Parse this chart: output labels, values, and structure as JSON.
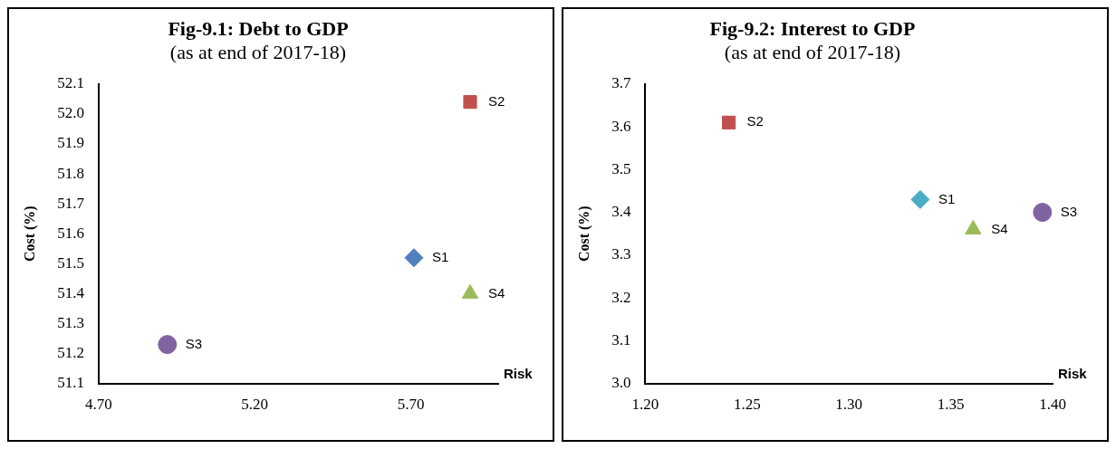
{
  "chart_data": [
    {
      "type": "scatter",
      "title": "Fig-9.1: Debt to GDP",
      "subtitle": "(as at end of 2017-18)",
      "xlabel": "Risk",
      "ylabel": "Cost (%)",
      "legend": false,
      "grid": false,
      "xlim": [
        4.7,
        5.98
      ],
      "xticks": [
        {
          "value": 4.7,
          "label": "4.70"
        },
        {
          "value": 5.2,
          "label": "5.20"
        },
        {
          "value": 5.7,
          "label": "5.70"
        }
      ],
      "ylim": [
        51.1,
        52.1
      ],
      "yticks": [
        51.1,
        51.2,
        51.3,
        51.4,
        51.5,
        51.6,
        51.7,
        51.8,
        51.9,
        {
          "value": 52.0,
          "label": "52.0"
        },
        52.1
      ],
      "series": [
        {
          "name": "S1",
          "color": "#4f81bd",
          "marker": "diamond",
          "x": [
            5.71
          ],
          "values": [
            51.52
          ]
        },
        {
          "name": "S2",
          "color": "#c0504d",
          "marker": "square",
          "x": [
            5.89
          ],
          "values": [
            52.04
          ]
        },
        {
          "name": "S3",
          "color": "#8064a2",
          "marker": "circle",
          "x": [
            4.92
          ],
          "values": [
            51.23
          ]
        },
        {
          "name": "S4",
          "color": "#9bbb59",
          "marker": "triangle",
          "x": [
            5.89
          ],
          "values": [
            51.4
          ]
        }
      ]
    },
    {
      "type": "scatter",
      "title": "Fig-9.2: Interest to GDP",
      "subtitle": "(as at end of 2017-18)",
      "xlabel": "Risk",
      "ylabel": "Cost (%)",
      "legend": false,
      "grid": false,
      "xlim": [
        1.2,
        1.4
      ],
      "xticks": [
        {
          "value": 1.2,
          "label": "1.20"
        },
        {
          "value": 1.25,
          "label": "1.25"
        },
        {
          "value": 1.3,
          "label": "1.30"
        },
        {
          "value": 1.35,
          "label": "1.35"
        },
        {
          "value": 1.4,
          "label": "1.40"
        }
      ],
      "ylim": [
        3.0,
        3.7
      ],
      "yticks": [
        {
          "value": 3.0,
          "label": "3.0"
        },
        3.1,
        3.2,
        3.3,
        3.4,
        3.5,
        3.6,
        3.7
      ],
      "series": [
        {
          "name": "S1",
          "color": "#4bacc6",
          "marker": "diamond",
          "x": [
            1.335
          ],
          "values": [
            3.43
          ]
        },
        {
          "name": "S2",
          "color": "#c0504d",
          "marker": "square",
          "x": [
            1.241
          ],
          "values": [
            3.61
          ]
        },
        {
          "name": "S3",
          "color": "#8064a2",
          "marker": "circle",
          "x": [
            1.395
          ],
          "values": [
            3.4
          ]
        },
        {
          "name": "S4",
          "color": "#9bbb59",
          "marker": "triangle",
          "x": [
            1.361
          ],
          "values": [
            3.36
          ]
        }
      ]
    }
  ]
}
